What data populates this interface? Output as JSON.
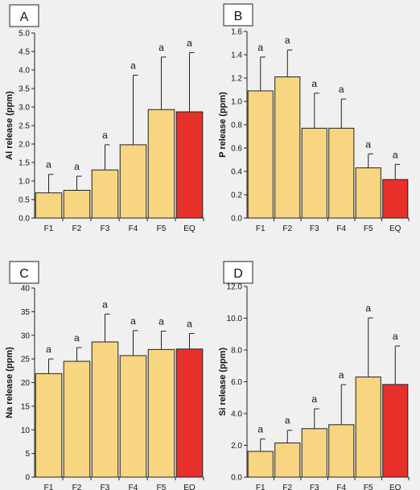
{
  "colors": {
    "bar": "#f8d580",
    "highlight": "#e8302b",
    "stroke": "#222222",
    "background": "#f0f0f0",
    "panel_label_bg": "#ffffff"
  },
  "chart_data": [
    {
      "type": "bar",
      "panel": "A",
      "ylabel": "Al release (ppm)",
      "categories": [
        "F1",
        "F2",
        "F3",
        "F4",
        "F5",
        "EQ"
      ],
      "values": [
        0.68,
        0.75,
        1.3,
        1.98,
        2.93,
        2.87
      ],
      "errors": [
        0.5,
        0.38,
        0.68,
        1.88,
        1.42,
        1.6
      ],
      "significance": [
        "a",
        "a",
        "a",
        "a",
        "a",
        "a"
      ],
      "highlight_index": 5,
      "ylim": [
        0,
        5.0
      ],
      "yticks": [
        0,
        0.5,
        1.0,
        1.5,
        2.0,
        2.5,
        3.0,
        3.5,
        4.0,
        4.5,
        5.0
      ],
      "ytick_labels": [
        "0.0",
        "0.5",
        "1.0",
        "1.5",
        "2.0",
        "2.5",
        "3.0",
        "3.5",
        "4.0",
        "4.5",
        "5.0"
      ]
    },
    {
      "type": "bar",
      "panel": "B",
      "ylabel": "P release (ppm)",
      "categories": [
        "F1",
        "F2",
        "F3",
        "F4",
        "F5",
        "EQ"
      ],
      "values": [
        1.09,
        1.21,
        0.77,
        0.77,
        0.43,
        0.33
      ],
      "errors": [
        0.29,
        0.23,
        0.3,
        0.25,
        0.12,
        0.13
      ],
      "significance": [
        "a",
        "a",
        "a",
        "a",
        "a",
        "a"
      ],
      "highlight_index": 5,
      "ylim": [
        0,
        1.6
      ],
      "yticks": [
        0,
        0.2,
        0.4,
        0.6,
        0.8,
        1.0,
        1.2,
        1.4,
        1.6
      ],
      "ytick_labels": [
        "0.0",
        "0.2",
        "0.4",
        "0.6",
        "0.8",
        "1.0",
        "1.2",
        "1.4",
        "1.6"
      ]
    },
    {
      "type": "bar",
      "panel": "C",
      "ylabel": "Na release (ppm)",
      "categories": [
        "F1",
        "F2",
        "F3",
        "F4",
        "F5",
        "EQ"
      ],
      "values": [
        21.9,
        24.5,
        28.6,
        25.7,
        27.0,
        27.1
      ],
      "errors": [
        3.1,
        2.9,
        5.9,
        5.3,
        3.9,
        3.3
      ],
      "significance": [
        "a",
        "a",
        "a",
        "a",
        "a",
        "a"
      ],
      "highlight_index": 5,
      "ylim": [
        0,
        40
      ],
      "yticks": [
        0,
        5,
        10,
        15,
        20,
        25,
        30,
        35,
        40
      ],
      "ytick_labels": [
        "0",
        "5",
        "10",
        "15",
        "20",
        "25",
        "30",
        "35",
        "40"
      ]
    },
    {
      "type": "bar",
      "panel": "D",
      "ylabel": "Si release (ppm)",
      "categories": [
        "F1",
        "F2",
        "F3",
        "F4",
        "F5",
        "EQ"
      ],
      "values": [
        1.62,
        2.15,
        3.05,
        3.3,
        6.3,
        5.83
      ],
      "errors": [
        0.78,
        0.8,
        1.25,
        2.52,
        3.72,
        2.42
      ],
      "significance": [
        "a",
        "a",
        "a",
        "a",
        "a",
        "a"
      ],
      "highlight_index": 5,
      "ylim": [
        0,
        12.0
      ],
      "yticks": [
        0,
        2,
        4,
        6,
        8,
        10,
        12
      ],
      "ytick_labels": [
        "0.0",
        "2.0",
        "4.0",
        "6.0",
        "8.0",
        "10.0",
        "12.0"
      ]
    }
  ]
}
